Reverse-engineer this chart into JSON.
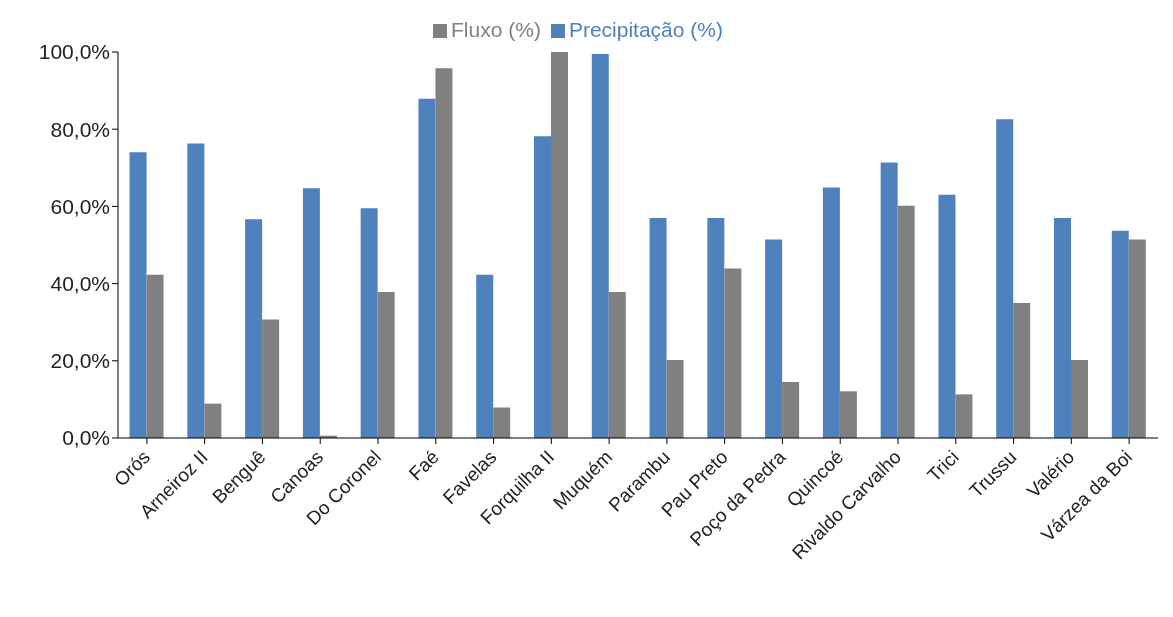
{
  "chart_data": {
    "type": "bar",
    "categories": [
      "Orós",
      "Arneiroz II",
      "Benguê",
      "Canoas",
      "Do Coronel",
      "Faé",
      "Favelas",
      "Forquilha II",
      "Muquém",
      "Parambu",
      "Pau Preto",
      "Poço da Pedra",
      "Quincoé",
      "Rivaldo Carvalho",
      "Trici",
      "Trussu",
      "Valério",
      "Várzea da Boi"
    ],
    "series": [
      {
        "name": "Precipitação (%)",
        "color": "#4f81bd",
        "values": [
          74,
          76.3,
          56.7,
          64.7,
          59.5,
          87.9,
          42.3,
          78.2,
          99.5,
          57,
          57,
          51.4,
          64.9,
          71.4,
          63,
          82.6,
          57,
          53.7
        ]
      },
      {
        "name": "Fluxo (%)",
        "color": "#808080",
        "values": [
          42.3,
          8.9,
          30.7,
          0.6,
          37.8,
          95.8,
          7.9,
          100,
          37.8,
          20.2,
          43.9,
          14.5,
          12.1,
          60.2,
          11.3,
          35,
          20.2,
          51.4
        ]
      }
    ],
    "ylim": [
      0,
      100
    ],
    "yticks": [
      {
        "value": 0,
        "label": "0,0%"
      },
      {
        "value": 20,
        "label": "20,0%"
      },
      {
        "value": 40,
        "label": "40,0%"
      },
      {
        "value": 60,
        "label": "60,0%"
      },
      {
        "value": 80,
        "label": "80,0%"
      },
      {
        "value": 100,
        "label": "100,0%"
      }
    ],
    "legend": "top"
  }
}
